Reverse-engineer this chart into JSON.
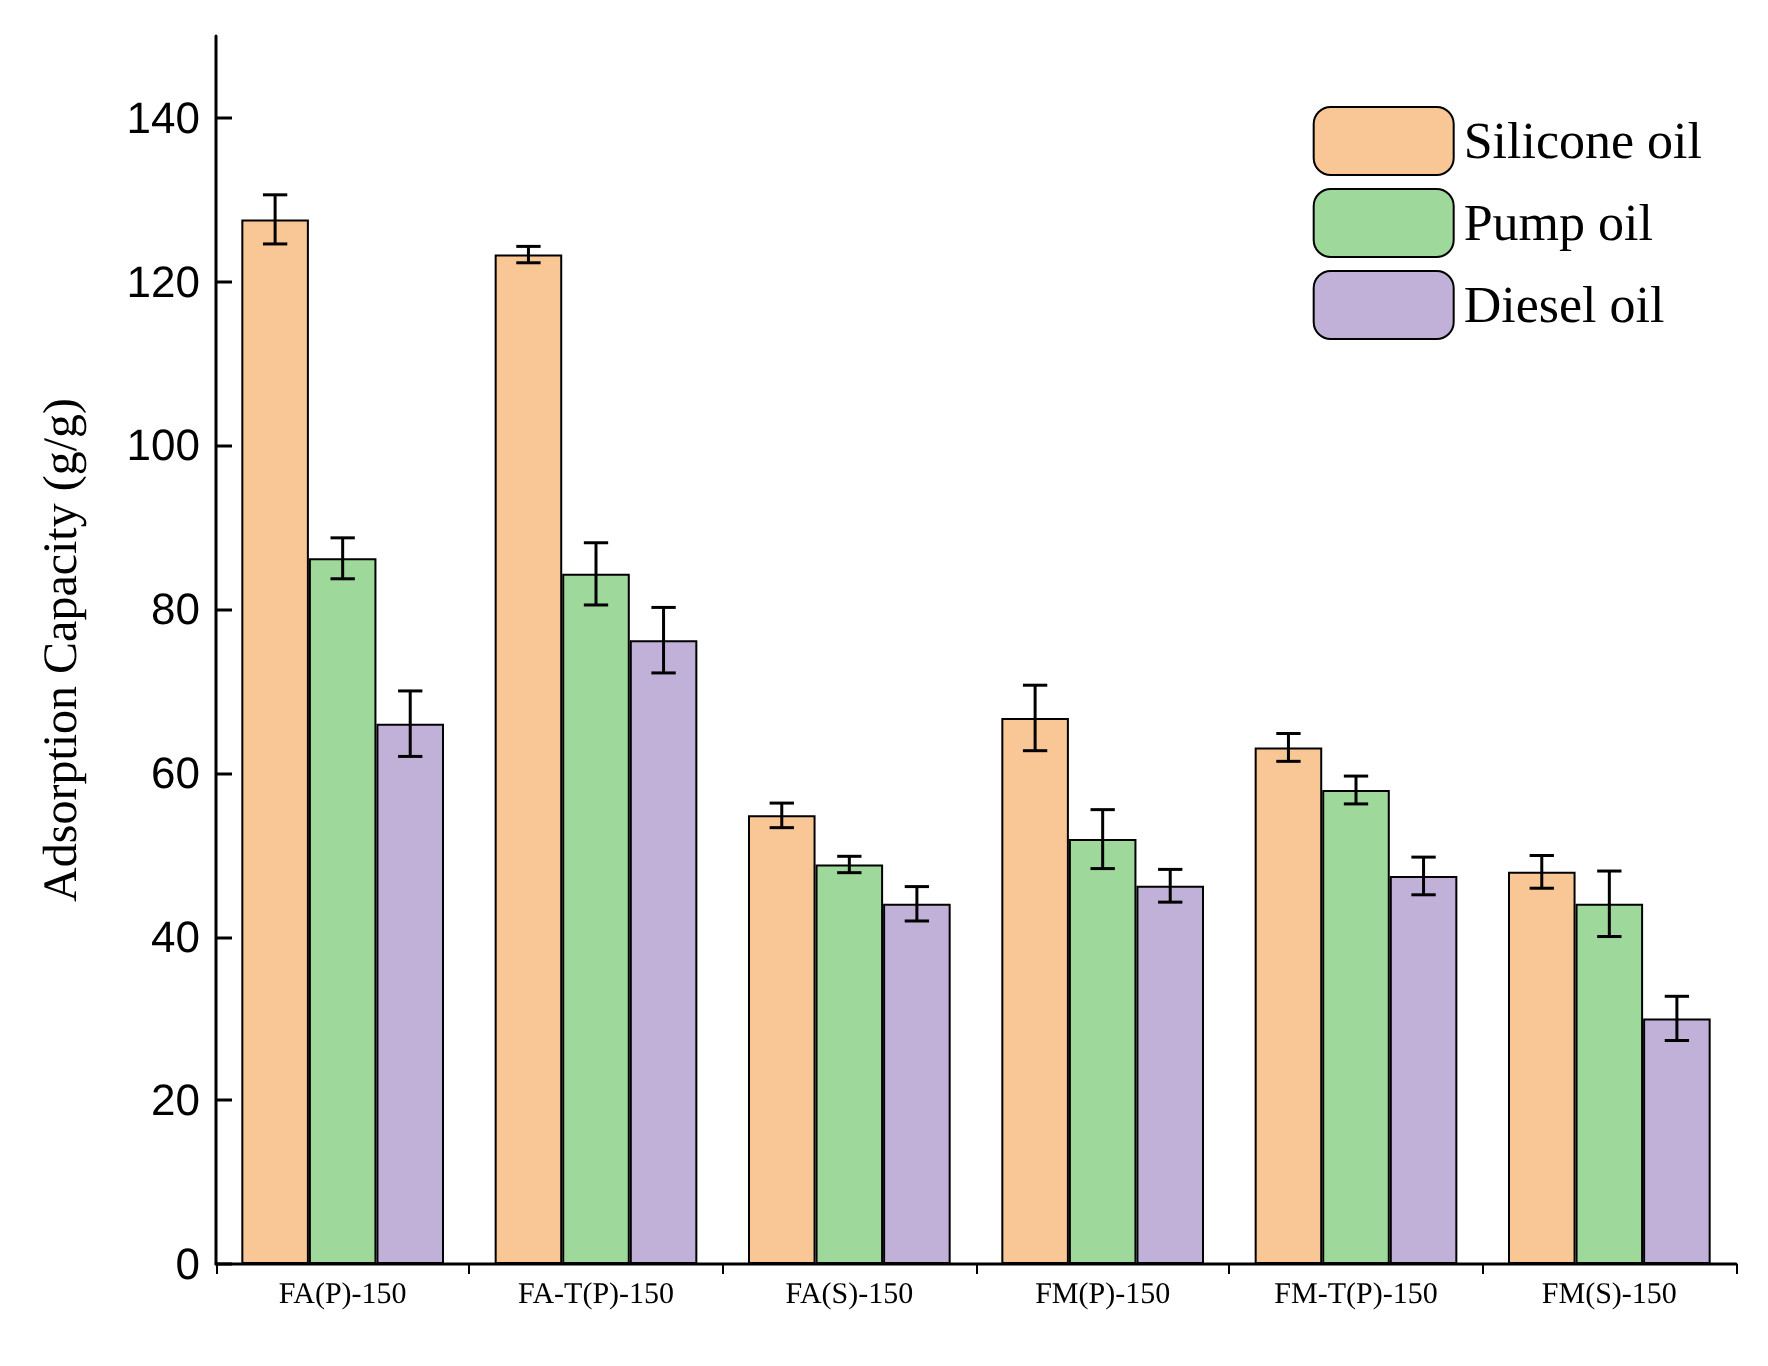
{
  "chart_data": {
    "type": "bar",
    "ylabel": "Adsorption Capacity (g/g)",
    "categories": [
      "FA(P)-150",
      "FA-T(P)-150",
      "FA(S)-150",
      "FM(P)-150",
      "FM-T(P)-150",
      "FM(S)-150"
    ],
    "series": [
      {
        "name": "Silicone oil",
        "color": "#f9c795",
        "values": [
          127.6,
          123.3,
          54.8,
          66.7,
          63.1,
          47.9
        ],
        "errors": [
          3,
          1,
          1.5,
          4,
          1.7,
          2
        ]
      },
      {
        "name": "Pump oil",
        "color": "#9ed89a",
        "values": [
          86.2,
          84.3,
          48.8,
          51.9,
          57.9,
          44
        ],
        "errors": [
          2.5,
          3.8,
          1,
          3.6,
          1.7,
          4
        ]
      },
      {
        "name": "Diesel oil",
        "color": "#c1b1d9",
        "values": [
          66,
          76.2,
          44,
          46.2,
          47.4,
          30
        ],
        "errors": [
          4,
          4,
          2.1,
          2,
          2.3,
          2.7
        ]
      }
    ],
    "ylim": [
      0,
      150
    ],
    "yticks": [
      0,
      20,
      40,
      60,
      80,
      100,
      120,
      140
    ],
    "grid": false,
    "legend": "top right"
  }
}
